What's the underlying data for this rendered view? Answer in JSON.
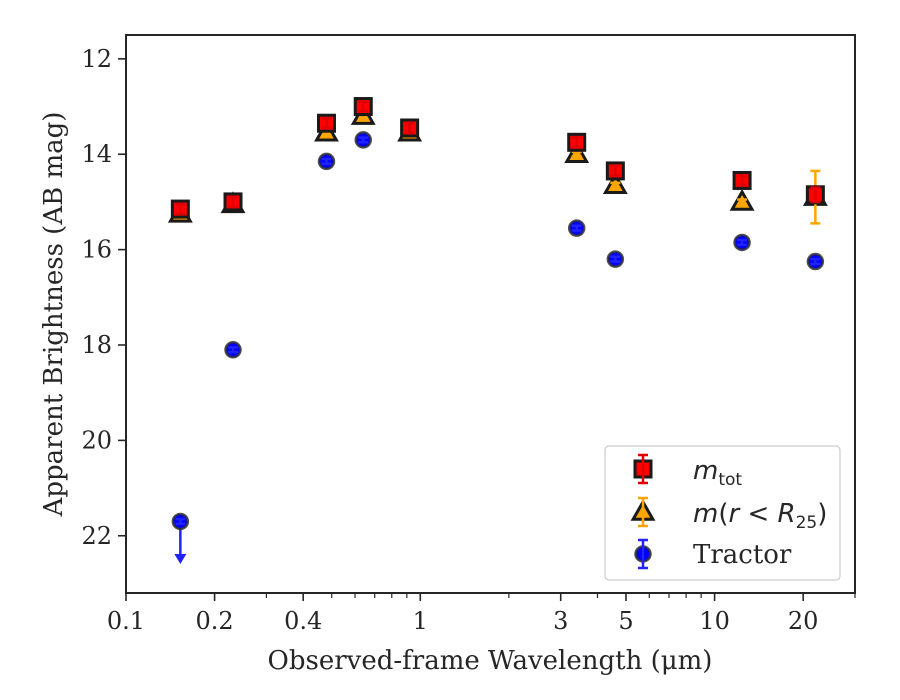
{
  "chart_data": {
    "type": "scatter",
    "xlabel": "Observed-frame Wavelength (μm)",
    "ylabel": "Apparent Brightness (AB mag)",
    "xscale": "log",
    "xlim": [
      0.1,
      30
    ],
    "ylim": [
      23.2,
      11.5
    ],
    "y_inverted": true,
    "x_ticks": [
      {
        "value": 0.1,
        "label": "0.1"
      },
      {
        "value": 0.2,
        "label": "0.2"
      },
      {
        "value": 0.4,
        "label": "0.4"
      },
      {
        "value": 1,
        "label": "1"
      },
      {
        "value": 3,
        "label": "3"
      },
      {
        "value": 5,
        "label": "5"
      },
      {
        "value": 10,
        "label": "10"
      },
      {
        "value": 20,
        "label": "20"
      }
    ],
    "y_ticks": [
      {
        "value": 12,
        "label": "12"
      },
      {
        "value": 14,
        "label": "14"
      },
      {
        "value": 16,
        "label": "16"
      },
      {
        "value": 18,
        "label": "18"
      },
      {
        "value": 20,
        "label": "20"
      },
      {
        "value": 22,
        "label": "22"
      }
    ],
    "grid": false,
    "legend_position": "bottom-right",
    "series": [
      {
        "legend_label": "m_tot",
        "marker": "square",
        "face_color": "#ff0000",
        "edge_color": "#1a1a1a",
        "error_color": "#e00000",
        "points": [
          {
            "x": 0.153,
            "y": 15.15,
            "err": 0.1
          },
          {
            "x": 0.231,
            "y": 15.0,
            "err": 0.1
          },
          {
            "x": 0.48,
            "y": 13.35,
            "err": 0.1
          },
          {
            "x": 0.64,
            "y": 13.0,
            "err": 0.1
          },
          {
            "x": 0.92,
            "y": 13.45,
            "err": 0.1
          },
          {
            "x": 3.4,
            "y": 13.75,
            "err": 0.1
          },
          {
            "x": 4.6,
            "y": 14.35,
            "err": 0.1
          },
          {
            "x": 12.4,
            "y": 14.55,
            "err": 0.1
          },
          {
            "x": 22.0,
            "y": 14.85,
            "err": 0.15
          }
        ]
      },
      {
        "legend_label": "m(r < R_25)",
        "marker": "triangle",
        "face_color": "#ffa500",
        "edge_color": "#1a1a1a",
        "error_color": "#ffa500",
        "points": [
          {
            "x": 0.153,
            "y": 15.25,
            "err": 0.05
          },
          {
            "x": 0.231,
            "y": 15.05,
            "err": 0.05
          },
          {
            "x": 0.48,
            "y": 13.55,
            "err": 0.05
          },
          {
            "x": 0.64,
            "y": 13.2,
            "err": 0.05
          },
          {
            "x": 0.92,
            "y": 13.55,
            "err": 0.05
          },
          {
            "x": 3.4,
            "y": 14.0,
            "err": 0.05
          },
          {
            "x": 4.6,
            "y": 14.65,
            "err": 0.05
          },
          {
            "x": 12.4,
            "y": 15.0,
            "err": 0.05
          },
          {
            "x": 22.0,
            "y": 14.9,
            "err": 0.55
          }
        ]
      },
      {
        "legend_label": "Tractor",
        "marker": "circle",
        "face_color": "#0000ff",
        "edge_color": "#333333",
        "error_color": "#2222ff",
        "points": [
          {
            "x": 0.153,
            "y": 21.7,
            "err": 0.05,
            "upper_limit": true
          },
          {
            "x": 0.231,
            "y": 18.1,
            "err": 0.05
          },
          {
            "x": 0.48,
            "y": 14.15,
            "err": 0.05
          },
          {
            "x": 0.64,
            "y": 13.7,
            "err": 0.05
          },
          {
            "x": 0.92,
            "y": 13.45,
            "err": 0.05
          },
          {
            "x": 3.4,
            "y": 15.55,
            "err": 0.05
          },
          {
            "x": 4.6,
            "y": 16.2,
            "err": 0.05
          },
          {
            "x": 12.4,
            "y": 15.85,
            "err": 0.05
          },
          {
            "x": 22.0,
            "y": 16.25,
            "err": 0.05
          }
        ]
      }
    ]
  }
}
